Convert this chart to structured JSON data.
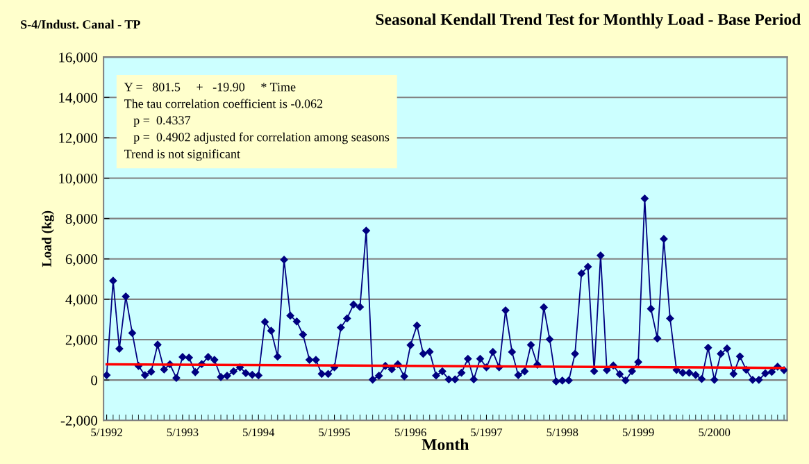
{
  "chart_data": {
    "type": "line",
    "title": "Seasonal Kendall Trend Test for Monthly Load - Base Period",
    "subtitle": "S-4/Indust. Canal - TP",
    "xlabel": "Month",
    "ylabel": "Load (kg)",
    "x": [
      "1992-05",
      "1992-06",
      "1992-07",
      "1992-08",
      "1992-09",
      "1992-10",
      "1992-11",
      "1992-12",
      "1993-01",
      "1993-02",
      "1993-03",
      "1993-04",
      "1993-05",
      "1993-06",
      "1993-07",
      "1993-08",
      "1993-09",
      "1993-10",
      "1993-11",
      "1993-12",
      "1994-01",
      "1994-02",
      "1994-03",
      "1994-04",
      "1994-05",
      "1994-06",
      "1994-07",
      "1994-08",
      "1994-09",
      "1994-10",
      "1994-11",
      "1994-12",
      "1995-01",
      "1995-02",
      "1995-03",
      "1995-04",
      "1995-05",
      "1995-06",
      "1995-07",
      "1995-08",
      "1995-09",
      "1995-10",
      "1995-11",
      "1995-12",
      "1996-01",
      "1996-02",
      "1996-03",
      "1996-04",
      "1996-05",
      "1996-06",
      "1996-07",
      "1996-08",
      "1996-09",
      "1996-10",
      "1996-11",
      "1996-12",
      "1997-01",
      "1997-02",
      "1997-03",
      "1997-04",
      "1997-05",
      "1997-06",
      "1997-07",
      "1997-08",
      "1997-09",
      "1997-10",
      "1997-11",
      "1997-12",
      "1998-01",
      "1998-02",
      "1998-03",
      "1998-04",
      "1998-05",
      "1998-06",
      "1998-07",
      "1998-08",
      "1998-09",
      "1998-10",
      "1998-11",
      "1998-12",
      "1999-01",
      "1999-02",
      "1999-03",
      "1999-04",
      "1999-05",
      "1999-06",
      "1999-07",
      "1999-08",
      "1999-09",
      "1999-10",
      "1999-11",
      "1999-12",
      "2000-01",
      "2000-02",
      "2000-03",
      "2000-04",
      "2000-05",
      "2000-06",
      "2000-07",
      "2000-08",
      "2000-09",
      "2000-10",
      "2000-11",
      "2000-12",
      "2001-01",
      "2001-02",
      "2001-03",
      "2001-04"
    ],
    "series": [
      {
        "color": "#000080",
        "marker": "diamond",
        "line_style": "solid",
        "values": [
          240,
          4920,
          1550,
          4140,
          2330,
          700,
          240,
          410,
          1750,
          520,
          780,
          100,
          1140,
          1110,
          390,
          790,
          1140,
          1000,
          150,
          210,
          430,
          630,
          340,
          260,
          230,
          2880,
          2440,
          1160,
          5960,
          3190,
          2900,
          2250,
          1000,
          1000,
          300,
          300,
          630,
          2600,
          3050,
          3740,
          3620,
          7400,
          20,
          210,
          700,
          530,
          780,
          180,
          1730,
          2700,
          1300,
          1400,
          220,
          430,
          30,
          30,
          360,
          1050,
          30,
          1050,
          630,
          1390,
          630,
          3450,
          1390,
          240,
          430,
          1740,
          760,
          3600,
          2020,
          -70,
          -30,
          -20,
          1300,
          5280,
          5610,
          440,
          6170,
          490,
          720,
          290,
          -20,
          440,
          890,
          8990,
          3530,
          2060,
          6990,
          3050,
          500,
          360,
          360,
          250,
          50,
          1600,
          10,
          1300,
          1560,
          300,
          1170,
          510,
          10,
          10,
          330,
          400,
          660,
          490
        ]
      },
      {
        "color": "#ff0000",
        "marker": "none",
        "line_style": "solid",
        "x": [
          "1992-05",
          "2001-04"
        ],
        "values": [
          780,
          600
        ]
      }
    ],
    "xlim": [
      "1992-04-16",
      "2001-04-16"
    ],
    "xticks": [
      {
        "value": "1992-05",
        "label": "5/1992"
      },
      {
        "value": "1993-05",
        "label": "5/1993"
      },
      {
        "value": "1994-05",
        "label": "5/1994"
      },
      {
        "value": "1995-05",
        "label": "5/1995"
      },
      {
        "value": "1996-05",
        "label": "5/1996"
      },
      {
        "value": "1997-05",
        "label": "5/1997"
      },
      {
        "value": "1998-05",
        "label": "5/1998"
      },
      {
        "value": "1999-05",
        "label": "5/1999"
      },
      {
        "value": "2000-05",
        "label": "5/2000"
      }
    ],
    "ylim": [
      -2000,
      16000
    ],
    "yticks": [
      {
        "value": -2000,
        "label": "-2,000"
      },
      0,
      {
        "value": 2000,
        "label": "2,000"
      },
      {
        "value": 4000,
        "label": "4,000"
      },
      {
        "value": 6000,
        "label": "6,000"
      },
      {
        "value": 8000,
        "label": "8,000"
      },
      {
        "value": 10000,
        "label": "10,000"
      },
      {
        "value": 12000,
        "label": "12,000"
      },
      {
        "value": 14000,
        "label": "14,000"
      },
      {
        "value": 16000,
        "label": "16,000"
      }
    ],
    "grid": "y",
    "annotations": [
      "Y =   801.5     +   -19.90     * Time",
      "The tau correlation coefficient is -0.062",
      "   p =  0.4337",
      "   p =  0.4902 adjusted for correlation among seasons",
      "Trend is not significant"
    ]
  }
}
